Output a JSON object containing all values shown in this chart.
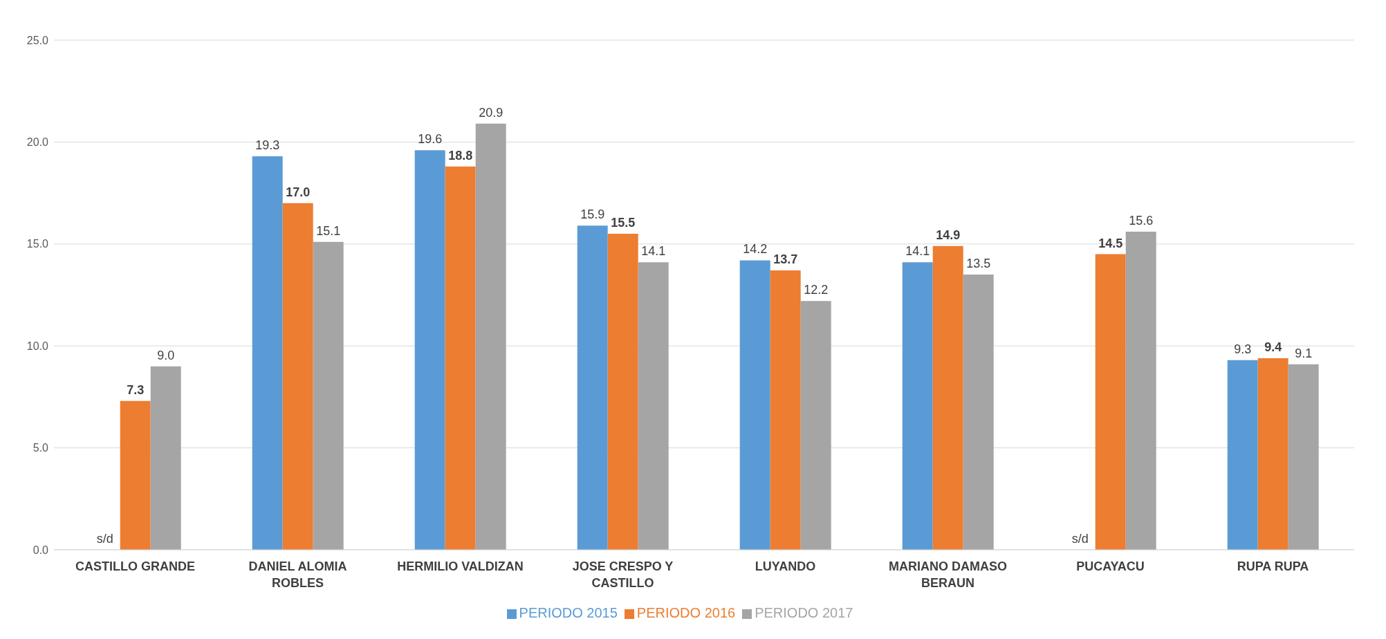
{
  "chart_data": {
    "type": "bar",
    "categories": [
      "CASTILLO GRANDE",
      "DANIEL ALOMIA ROBLES",
      "HERMILIO VALDIZAN",
      "JOSE CRESPO Y CASTILLO",
      "LUYANDO",
      "MARIANO DAMASO BERAUN",
      "PUCAYACU",
      "RUPA RUPA"
    ],
    "series": [
      {
        "name": "PERIODO 2015",
        "color": "#5b9bd5",
        "values": [
          null,
          19.3,
          19.6,
          15.9,
          14.2,
          14.1,
          null,
          9.3
        ],
        "value_labels": [
          "s/d",
          "19.3",
          "19.6",
          "15.9",
          "14.2",
          "14.1",
          "s/d",
          "9.3"
        ]
      },
      {
        "name": "PERIODO 2016",
        "color": "#ed7d31",
        "values": [
          7.3,
          17.0,
          18.8,
          15.5,
          13.7,
          14.9,
          14.5,
          9.4
        ],
        "value_labels": [
          "7.3",
          "17.0",
          "18.8",
          "15.5",
          "13.7",
          "14.9",
          "14.5",
          "9.4"
        ]
      },
      {
        "name": "PERIODO 2017",
        "color": "#a5a5a5",
        "values": [
          9.0,
          15.1,
          20.9,
          14.1,
          12.2,
          13.5,
          15.6,
          9.1
        ],
        "value_labels": [
          "9.0",
          "15.1",
          "20.9",
          "14.1",
          "12.2",
          "13.5",
          "15.6",
          "9.1"
        ]
      }
    ],
    "ylim": [
      0,
      25
    ],
    "yticks": [
      {
        "value": 0,
        "label": "0.0"
      },
      {
        "value": 5,
        "label": "5.0"
      },
      {
        "value": 10,
        "label": "10.0"
      },
      {
        "value": 15,
        "label": "15.0"
      },
      {
        "value": 20,
        "label": "20.0"
      },
      {
        "value": 25,
        "label": "25.0"
      }
    ],
    "grid": "y",
    "legend": "bottom"
  }
}
